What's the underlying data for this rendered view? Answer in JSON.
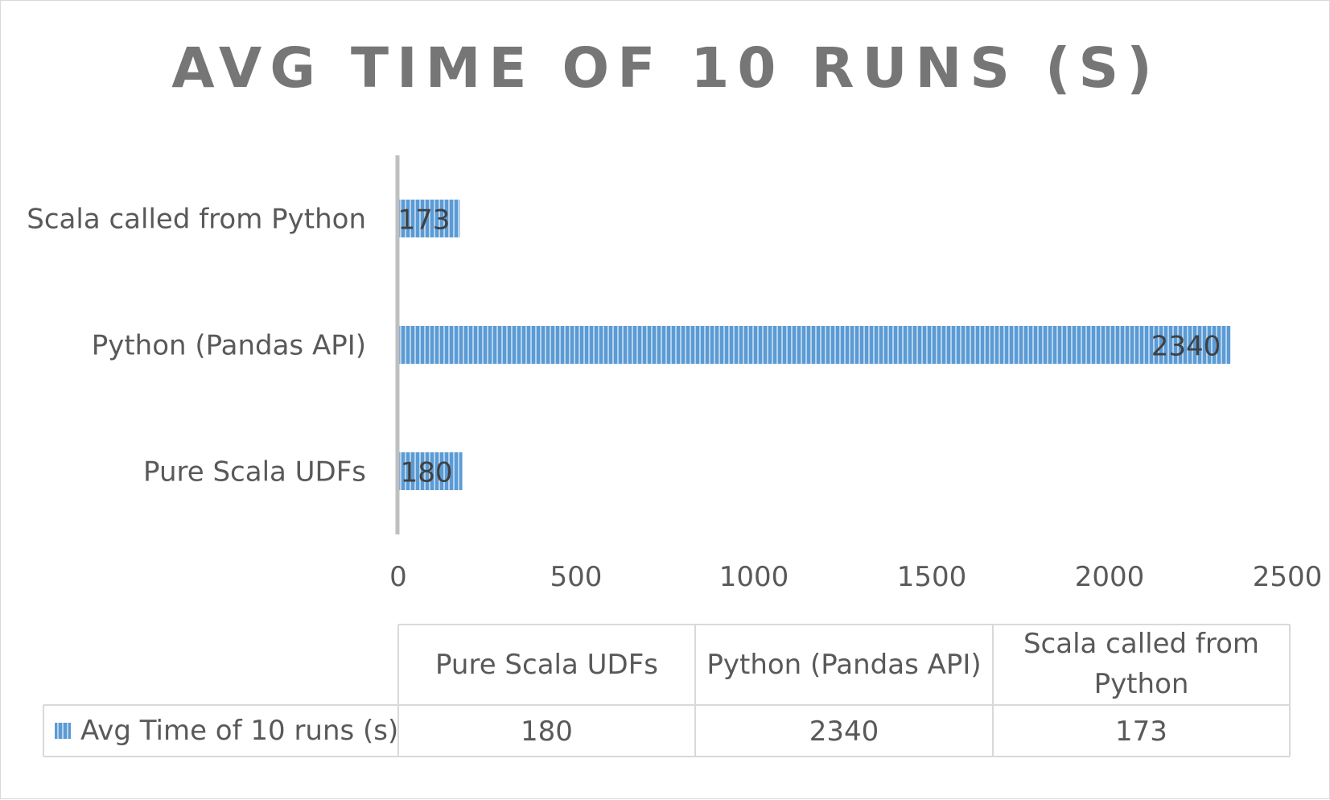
{
  "chart_data": {
    "type": "bar",
    "orientation": "horizontal",
    "title": "Avg Time of 10 runs (s)",
    "categories": [
      "Pure Scala UDFs",
      "Python (Pandas API)",
      "Scala called from Python"
    ],
    "series": [
      {
        "name": "Avg Time of 10 runs (s)",
        "values": [
          180,
          2340,
          173
        ],
        "data_labels": [
          "180",
          "2340",
          "173"
        ]
      }
    ],
    "xlim": [
      0,
      2500
    ],
    "xticks": [
      0,
      500,
      1000,
      1500,
      2000,
      2500
    ],
    "xtick_labels": [
      "0",
      "500",
      "1000",
      "1500",
      "2000",
      "2500"
    ],
    "grid": false,
    "legend": "data table below plot",
    "data_table": {
      "headers": [
        "Pure Scala UDFs",
        "Python (Pandas API)",
        "Scala called from Python"
      ],
      "row_label": "Avg Time of 10 runs (s)",
      "row_values": [
        "180",
        "2340",
        "173"
      ]
    },
    "colors": {
      "bar": "#5b9bd5",
      "bar_stripe": "#ffffff",
      "axis": "#bfbfbf",
      "text": "#595959",
      "title": "#767676",
      "table_border": "#d9d9d9"
    }
  }
}
